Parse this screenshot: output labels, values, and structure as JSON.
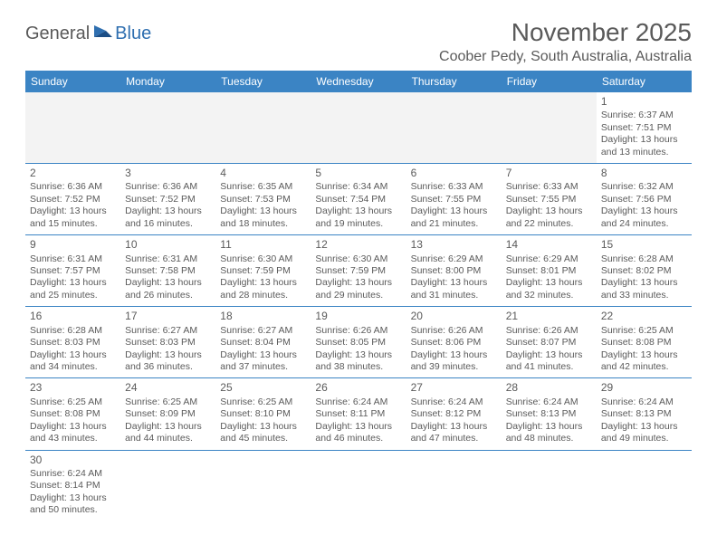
{
  "logo": {
    "general": "General",
    "blue": "Blue"
  },
  "title": "November 2025",
  "location": "Coober Pedy, South Australia, Australia",
  "colors": {
    "header_bg": "#3b84c4",
    "header_fg": "#ffffff",
    "text": "#5a5a5a",
    "border": "#3b84c4",
    "empty_bg": "#f3f3f3",
    "logo_blue": "#2f6fb0"
  },
  "day_headers": [
    "Sunday",
    "Monday",
    "Tuesday",
    "Wednesday",
    "Thursday",
    "Friday",
    "Saturday"
  ],
  "weeks": [
    [
      null,
      null,
      null,
      null,
      null,
      null,
      {
        "n": "1",
        "sr": "Sunrise: 6:37 AM",
        "ss": "Sunset: 7:51 PM",
        "dl": "Daylight: 13 hours and 13 minutes."
      }
    ],
    [
      {
        "n": "2",
        "sr": "Sunrise: 6:36 AM",
        "ss": "Sunset: 7:52 PM",
        "dl": "Daylight: 13 hours and 15 minutes."
      },
      {
        "n": "3",
        "sr": "Sunrise: 6:36 AM",
        "ss": "Sunset: 7:52 PM",
        "dl": "Daylight: 13 hours and 16 minutes."
      },
      {
        "n": "4",
        "sr": "Sunrise: 6:35 AM",
        "ss": "Sunset: 7:53 PM",
        "dl": "Daylight: 13 hours and 18 minutes."
      },
      {
        "n": "5",
        "sr": "Sunrise: 6:34 AM",
        "ss": "Sunset: 7:54 PM",
        "dl": "Daylight: 13 hours and 19 minutes."
      },
      {
        "n": "6",
        "sr": "Sunrise: 6:33 AM",
        "ss": "Sunset: 7:55 PM",
        "dl": "Daylight: 13 hours and 21 minutes."
      },
      {
        "n": "7",
        "sr": "Sunrise: 6:33 AM",
        "ss": "Sunset: 7:55 PM",
        "dl": "Daylight: 13 hours and 22 minutes."
      },
      {
        "n": "8",
        "sr": "Sunrise: 6:32 AM",
        "ss": "Sunset: 7:56 PM",
        "dl": "Daylight: 13 hours and 24 minutes."
      }
    ],
    [
      {
        "n": "9",
        "sr": "Sunrise: 6:31 AM",
        "ss": "Sunset: 7:57 PM",
        "dl": "Daylight: 13 hours and 25 minutes."
      },
      {
        "n": "10",
        "sr": "Sunrise: 6:31 AM",
        "ss": "Sunset: 7:58 PM",
        "dl": "Daylight: 13 hours and 26 minutes."
      },
      {
        "n": "11",
        "sr": "Sunrise: 6:30 AM",
        "ss": "Sunset: 7:59 PM",
        "dl": "Daylight: 13 hours and 28 minutes."
      },
      {
        "n": "12",
        "sr": "Sunrise: 6:30 AM",
        "ss": "Sunset: 7:59 PM",
        "dl": "Daylight: 13 hours and 29 minutes."
      },
      {
        "n": "13",
        "sr": "Sunrise: 6:29 AM",
        "ss": "Sunset: 8:00 PM",
        "dl": "Daylight: 13 hours and 31 minutes."
      },
      {
        "n": "14",
        "sr": "Sunrise: 6:29 AM",
        "ss": "Sunset: 8:01 PM",
        "dl": "Daylight: 13 hours and 32 minutes."
      },
      {
        "n": "15",
        "sr": "Sunrise: 6:28 AM",
        "ss": "Sunset: 8:02 PM",
        "dl": "Daylight: 13 hours and 33 minutes."
      }
    ],
    [
      {
        "n": "16",
        "sr": "Sunrise: 6:28 AM",
        "ss": "Sunset: 8:03 PM",
        "dl": "Daylight: 13 hours and 34 minutes."
      },
      {
        "n": "17",
        "sr": "Sunrise: 6:27 AM",
        "ss": "Sunset: 8:03 PM",
        "dl": "Daylight: 13 hours and 36 minutes."
      },
      {
        "n": "18",
        "sr": "Sunrise: 6:27 AM",
        "ss": "Sunset: 8:04 PM",
        "dl": "Daylight: 13 hours and 37 minutes."
      },
      {
        "n": "19",
        "sr": "Sunrise: 6:26 AM",
        "ss": "Sunset: 8:05 PM",
        "dl": "Daylight: 13 hours and 38 minutes."
      },
      {
        "n": "20",
        "sr": "Sunrise: 6:26 AM",
        "ss": "Sunset: 8:06 PM",
        "dl": "Daylight: 13 hours and 39 minutes."
      },
      {
        "n": "21",
        "sr": "Sunrise: 6:26 AM",
        "ss": "Sunset: 8:07 PM",
        "dl": "Daylight: 13 hours and 41 minutes."
      },
      {
        "n": "22",
        "sr": "Sunrise: 6:25 AM",
        "ss": "Sunset: 8:08 PM",
        "dl": "Daylight: 13 hours and 42 minutes."
      }
    ],
    [
      {
        "n": "23",
        "sr": "Sunrise: 6:25 AM",
        "ss": "Sunset: 8:08 PM",
        "dl": "Daylight: 13 hours and 43 minutes."
      },
      {
        "n": "24",
        "sr": "Sunrise: 6:25 AM",
        "ss": "Sunset: 8:09 PM",
        "dl": "Daylight: 13 hours and 44 minutes."
      },
      {
        "n": "25",
        "sr": "Sunrise: 6:25 AM",
        "ss": "Sunset: 8:10 PM",
        "dl": "Daylight: 13 hours and 45 minutes."
      },
      {
        "n": "26",
        "sr": "Sunrise: 6:24 AM",
        "ss": "Sunset: 8:11 PM",
        "dl": "Daylight: 13 hours and 46 minutes."
      },
      {
        "n": "27",
        "sr": "Sunrise: 6:24 AM",
        "ss": "Sunset: 8:12 PM",
        "dl": "Daylight: 13 hours and 47 minutes."
      },
      {
        "n": "28",
        "sr": "Sunrise: 6:24 AM",
        "ss": "Sunset: 8:13 PM",
        "dl": "Daylight: 13 hours and 48 minutes."
      },
      {
        "n": "29",
        "sr": "Sunrise: 6:24 AM",
        "ss": "Sunset: 8:13 PM",
        "dl": "Daylight: 13 hours and 49 minutes."
      }
    ],
    [
      {
        "n": "30",
        "sr": "Sunrise: 6:24 AM",
        "ss": "Sunset: 8:14 PM",
        "dl": "Daylight: 13 hours and 50 minutes."
      },
      null,
      null,
      null,
      null,
      null,
      null
    ]
  ]
}
